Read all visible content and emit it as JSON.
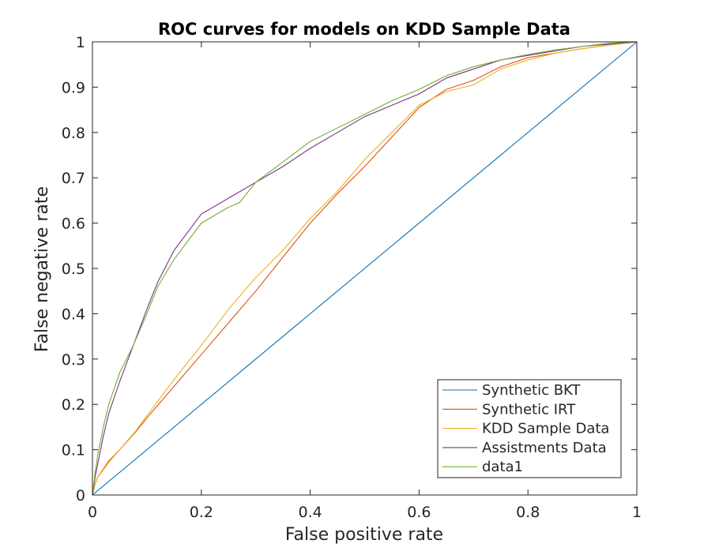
{
  "chart_data": {
    "type": "line",
    "title": "ROC curves for models on KDD Sample Data",
    "xlabel": "False positive rate",
    "ylabel": "False negative rate",
    "xlim": [
      0,
      1
    ],
    "ylim": [
      0,
      1
    ],
    "xticks": [
      "0",
      "0.2",
      "0.4",
      "0.6",
      "0.8",
      "1"
    ],
    "yticks": [
      "0",
      "0.1",
      "0.2",
      "0.3",
      "0.4",
      "0.5",
      "0.6",
      "0.7",
      "0.8",
      "0.9",
      "1"
    ],
    "grid": false,
    "legend_position": "bottom-right",
    "series": [
      {
        "name": "Synthetic BKT",
        "color": "#0072bd",
        "x": [
          0,
          1
        ],
        "y": [
          0,
          1
        ]
      },
      {
        "name": "Synthetic IRT",
        "color": "#d95319",
        "x": [
          0,
          0.005,
          0.01,
          0.02,
          0.03,
          0.05,
          0.08,
          0.1,
          0.15,
          0.2,
          0.25,
          0.3,
          0.35,
          0.4,
          0.45,
          0.5,
          0.55,
          0.6,
          0.65,
          0.7,
          0.75,
          0.8,
          0.85,
          0.9,
          0.95,
          1
        ],
        "y": [
          0,
          0.025,
          0.04,
          0.057,
          0.075,
          0.1,
          0.14,
          0.17,
          0.24,
          0.31,
          0.38,
          0.45,
          0.525,
          0.6,
          0.665,
          0.725,
          0.79,
          0.855,
          0.895,
          0.915,
          0.945,
          0.965,
          0.975,
          0.985,
          0.993,
          1
        ]
      },
      {
        "name": "KDD Sample Data",
        "color": "#edb120",
        "x": [
          0,
          0.005,
          0.01,
          0.02,
          0.03,
          0.05,
          0.08,
          0.1,
          0.15,
          0.2,
          0.25,
          0.3,
          0.35,
          0.4,
          0.45,
          0.5,
          0.55,
          0.6,
          0.65,
          0.7,
          0.75,
          0.8,
          0.85,
          0.9,
          0.95,
          1
        ],
        "y": [
          0,
          0.025,
          0.04,
          0.055,
          0.072,
          0.1,
          0.142,
          0.175,
          0.255,
          0.33,
          0.41,
          0.48,
          0.54,
          0.61,
          0.67,
          0.74,
          0.8,
          0.86,
          0.89,
          0.905,
          0.94,
          0.96,
          0.975,
          0.985,
          0.993,
          1
        ]
      },
      {
        "name": "Assistments Data",
        "color": "#7e2f8e",
        "x": [
          0,
          0.005,
          0.01,
          0.02,
          0.03,
          0.05,
          0.075,
          0.1,
          0.12,
          0.15,
          0.2,
          0.25,
          0.3,
          0.35,
          0.4,
          0.45,
          0.5,
          0.55,
          0.6,
          0.65,
          0.7,
          0.75,
          0.8,
          0.85,
          0.9,
          0.95,
          1
        ],
        "y": [
          0,
          0.04,
          0.07,
          0.13,
          0.18,
          0.25,
          0.33,
          0.41,
          0.47,
          0.54,
          0.62,
          0.655,
          0.69,
          0.725,
          0.765,
          0.8,
          0.835,
          0.86,
          0.885,
          0.92,
          0.94,
          0.96,
          0.97,
          0.98,
          0.99,
          0.995,
          1
        ]
      },
      {
        "name": "data1",
        "color": "#77ac30",
        "x": [
          0,
          0.005,
          0.01,
          0.02,
          0.03,
          0.05,
          0.075,
          0.1,
          0.12,
          0.15,
          0.2,
          0.25,
          0.27,
          0.3,
          0.35,
          0.4,
          0.45,
          0.5,
          0.55,
          0.6,
          0.65,
          0.7,
          0.75,
          0.8,
          0.85,
          0.9,
          0.95,
          1
        ],
        "y": [
          0,
          0.05,
          0.09,
          0.15,
          0.2,
          0.27,
          0.33,
          0.4,
          0.46,
          0.52,
          0.6,
          0.635,
          0.645,
          0.69,
          0.735,
          0.78,
          0.81,
          0.84,
          0.87,
          0.895,
          0.925,
          0.945,
          0.96,
          0.972,
          0.982,
          0.99,
          0.997,
          1
        ]
      }
    ]
  }
}
